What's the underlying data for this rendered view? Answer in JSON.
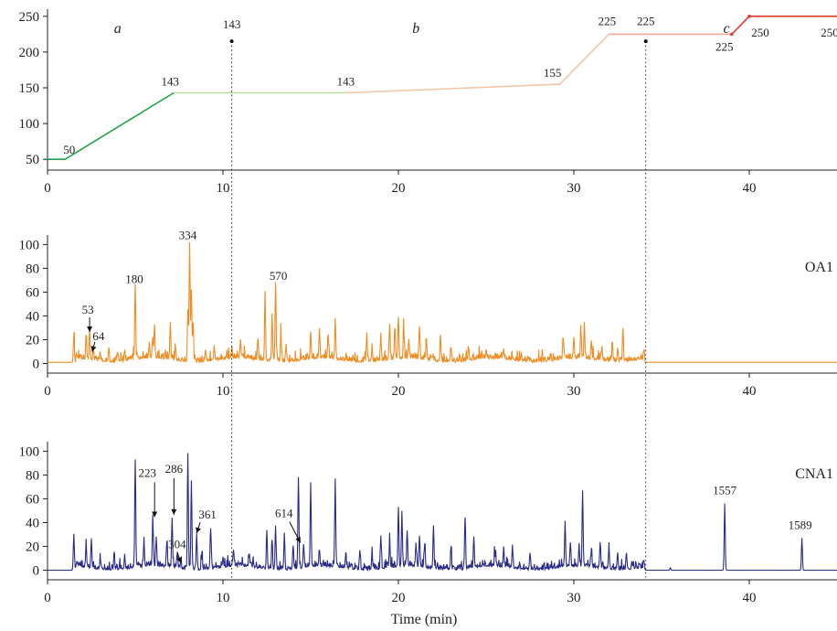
{
  "chart_data": [
    {
      "type": "line",
      "title": "",
      "xlabel": "",
      "ylabel": "",
      "xlim": [
        0,
        45
      ],
      "ylim": [
        40,
        260
      ],
      "xticks": [
        0,
        10,
        20,
        30,
        40
      ],
      "yticks": [
        50,
        100,
        150,
        200,
        250
      ],
      "regions": [
        "a",
        "b",
        "c"
      ],
      "series": [
        {
          "color": "#22a34a",
          "x": [
            0,
            1,
            7.2
          ],
          "y": [
            50,
            50,
            143
          ]
        },
        {
          "color": "#b9dfa4",
          "x": [
            7.2,
            17
          ],
          "y": [
            143,
            143
          ]
        },
        {
          "color": "#f3c7a6",
          "x": [
            17,
            29.2,
            32
          ],
          "y": [
            143,
            155,
            225
          ]
        },
        {
          "color": "#f0a8a2",
          "x": [
            32,
            39
          ],
          "y": [
            225,
            225
          ]
        },
        {
          "color": "#e23b2e",
          "x": [
            39,
            40,
            45
          ],
          "y": [
            225,
            250,
            250
          ]
        }
      ],
      "annotations": [
        {
          "text": "50",
          "x": 1,
          "y": 50
        },
        {
          "text": "143",
          "x": 7.2,
          "y": 143
        },
        {
          "text": "143",
          "x": 10.5,
          "y": 215
        },
        {
          "text": "143",
          "x": 17,
          "y": 143
        },
        {
          "text": "155",
          "x": 29.2,
          "y": 155
        },
        {
          "text": "225",
          "x": 32,
          "y": 225
        },
        {
          "text": "225",
          "x": 34.1,
          "y": 225
        },
        {
          "text": "225",
          "x": 39,
          "y": 225
        },
        {
          "text": "250",
          "x": 40,
          "y": 250
        },
        {
          "text": "250",
          "x": 45,
          "y": 250
        }
      ]
    },
    {
      "type": "line",
      "title": "",
      "xlabel": "",
      "ylabel": "",
      "xlim": [
        0,
        45
      ],
      "ylim": [
        -5,
        108
      ],
      "xticks": [
        0,
        10,
        20,
        30,
        40
      ],
      "yticks": [
        0,
        20,
        40,
        60,
        80,
        100
      ],
      "series": [
        {
          "name": "OA1",
          "color": "#f08c22",
          "baseline": 1,
          "noise": 3,
          "noise_start": 1.4,
          "noise_end": 34,
          "peaks": [
            [
              1.5,
              23
            ],
            [
              2.2,
              20
            ],
            [
              2.4,
              25
            ],
            [
              2.6,
              9
            ],
            [
              3.0,
              8
            ],
            [
              3.5,
              10
            ],
            [
              4.0,
              7
            ],
            [
              4.4,
              9
            ],
            [
              5.0,
              63
            ],
            [
              5.8,
              12
            ],
            [
              6.0,
              18
            ],
            [
              6.1,
              27
            ],
            [
              7.0,
              28
            ],
            [
              7.3,
              10
            ],
            [
              8.0,
              44
            ],
            [
              8.1,
              100
            ],
            [
              8.2,
              60
            ],
            [
              8.3,
              32
            ],
            [
              9.0,
              9
            ],
            [
              9.5,
              12
            ],
            [
              10.5,
              8
            ],
            [
              11.0,
              15
            ],
            [
              12.0,
              18
            ],
            [
              12.4,
              58
            ],
            [
              12.8,
              40
            ],
            [
              13.0,
              64
            ],
            [
              13.3,
              22
            ],
            [
              13.6,
              14
            ],
            [
              15.0,
              23
            ],
            [
              15.5,
              25
            ],
            [
              16.0,
              18
            ],
            [
              16.4,
              34
            ],
            [
              18.2,
              22
            ],
            [
              18.5,
              12
            ],
            [
              19.0,
              21
            ],
            [
              19.5,
              30
            ],
            [
              19.8,
              26
            ],
            [
              20.0,
              35
            ],
            [
              20.3,
              28
            ],
            [
              20.6,
              16
            ],
            [
              21.2,
              27
            ],
            [
              21.6,
              18
            ],
            [
              22.4,
              22
            ],
            [
              23.0,
              12
            ],
            [
              24.0,
              10
            ],
            [
              25.0,
              8
            ],
            [
              26.0,
              7
            ],
            [
              27.0,
              6
            ],
            [
              29.4,
              16
            ],
            [
              30.0,
              18
            ],
            [
              30.4,
              26
            ],
            [
              30.6,
              28
            ],
            [
              31.0,
              16
            ],
            [
              31.6,
              12
            ],
            [
              32.2,
              16
            ],
            [
              32.5,
              12
            ],
            [
              32.8,
              28
            ],
            [
              34.0,
              11
            ]
          ]
        }
      ],
      "annotations": [
        {
          "text": "180",
          "x": 5.0,
          "y": 63
        },
        {
          "text": "334",
          "x": 8.1,
          "y": 100
        },
        {
          "text": "570",
          "x": 13.0,
          "y": 64
        },
        {
          "text": "53",
          "x": 2.4,
          "y": 25
        },
        {
          "text": "64",
          "x": 2.6,
          "y": 9
        }
      ]
    },
    {
      "type": "line",
      "title": "",
      "xlabel": "Time (min)",
      "ylabel": "",
      "xlim": [
        0,
        45
      ],
      "ylim": [
        -5,
        108
      ],
      "xticks": [
        0,
        10,
        20,
        30,
        40
      ],
      "yticks": [
        0,
        20,
        40,
        60,
        80,
        100
      ],
      "series": [
        {
          "name": "CNA1",
          "color": "#2a2a8a",
          "baseline": 0,
          "noise": 3,
          "noise_start": 1.4,
          "noise_end": 34,
          "peaks": [
            [
              1.5,
              30
            ],
            [
              2.2,
              20
            ],
            [
              2.5,
              25
            ],
            [
              3.0,
              8
            ],
            [
              3.8,
              14
            ],
            [
              4.4,
              10
            ],
            [
              5.0,
              90
            ],
            [
              5.5,
              20
            ],
            [
              6.0,
              40
            ],
            [
              6.2,
              25
            ],
            [
              6.8,
              20
            ],
            [
              7.1,
              42
            ],
            [
              7.4,
              12
            ],
            [
              7.6,
              6
            ],
            [
              8.0,
              98
            ],
            [
              8.2,
              75
            ],
            [
              8.5,
              30
            ],
            [
              8.8,
              12
            ],
            [
              9.3,
              33
            ],
            [
              10.0,
              8
            ],
            [
              10.6,
              14
            ],
            [
              11.5,
              10
            ],
            [
              12.5,
              30
            ],
            [
              12.8,
              25
            ],
            [
              13.0,
              35
            ],
            [
              13.5,
              30
            ],
            [
              14.0,
              20
            ],
            [
              14.3,
              74
            ],
            [
              14.6,
              20
            ],
            [
              15.0,
              68
            ],
            [
              15.5,
              12
            ],
            [
              16.4,
              73
            ],
            [
              17.0,
              12
            ],
            [
              17.8,
              16
            ],
            [
              18.5,
              14
            ],
            [
              19.0,
              28
            ],
            [
              19.5,
              20
            ],
            [
              20.0,
              50
            ],
            [
              20.2,
              45
            ],
            [
              20.5,
              30
            ],
            [
              21.0,
              20
            ],
            [
              21.2,
              25
            ],
            [
              21.5,
              20
            ],
            [
              22.0,
              35
            ],
            [
              23.0,
              18
            ],
            [
              23.8,
              40
            ],
            [
              24.3,
              25
            ],
            [
              25.5,
              10
            ],
            [
              26.0,
              15
            ],
            [
              26.5,
              18
            ],
            [
              27.5,
              12
            ],
            [
              29.5,
              37
            ],
            [
              29.8,
              20
            ],
            [
              30.3,
              18
            ],
            [
              30.5,
              64
            ],
            [
              31.0,
              15
            ],
            [
              31.5,
              22
            ],
            [
              32.0,
              18
            ],
            [
              32.5,
              14
            ],
            [
              33.0,
              12
            ],
            [
              34.0,
              8
            ],
            [
              35.5,
              2
            ],
            [
              38.6,
              56
            ],
            [
              43.0,
              27
            ]
          ]
        }
      ],
      "annotations": [
        {
          "text": "223",
          "x": 6.0,
          "y": 40
        },
        {
          "text": "286",
          "x": 7.1,
          "y": 42
        },
        {
          "text": "304",
          "x": 7.6,
          "y": 6
        },
        {
          "text": "361",
          "x": 8.6,
          "y": 28
        },
        {
          "text": "614",
          "x": 14.0,
          "y": 20
        },
        {
          "text": "1557",
          "x": 38.6,
          "y": 56
        },
        {
          "text": "1589",
          "x": 43.0,
          "y": 27
        }
      ]
    }
  ]
}
